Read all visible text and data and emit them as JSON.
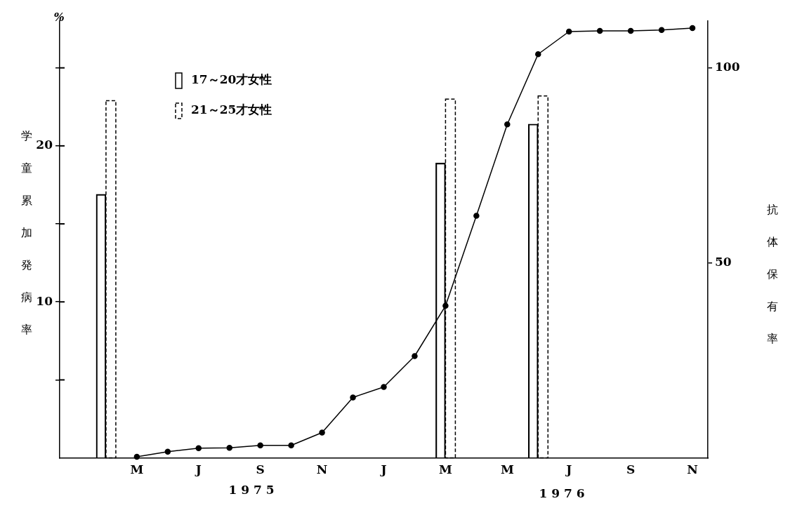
{
  "chart_data": {
    "type": "bar",
    "ylabel": "学童累加発病率",
    "y2label": "抗体保有率",
    "annotations": [
      "%",
      "1 9 7 5",
      "1 9 7 6"
    ],
    "categories": [
      null,
      null,
      "M",
      null,
      "J",
      null,
      "S",
      null,
      "N",
      null,
      "J",
      null,
      "M",
      null,
      "M",
      null,
      "J",
      null,
      "S",
      null,
      "N"
    ],
    "series": [
      {
        "name": "17～20才女性",
        "color": "#000000",
        "line_style": "solid",
        "values": [
          null,
          16.9,
          null,
          null,
          null,
          null,
          null,
          null,
          null,
          null,
          null,
          null,
          18.9,
          null,
          null,
          21.4,
          null,
          null,
          null,
          null,
          null
        ]
      },
      {
        "name": "21～25才女性",
        "color": "#000000",
        "line_style": "dashed",
        "values": [
          null,
          22.9,
          null,
          null,
          null,
          null,
          null,
          null,
          null,
          null,
          null,
          null,
          23.0,
          null,
          null,
          23.2,
          null,
          null,
          null,
          null,
          null
        ]
      },
      {
        "type": "line",
        "axis": "y2",
        "color": "#000000",
        "marker": "circle",
        "values": [
          null,
          null,
          0.3,
          1.6,
          2.5,
          2.6,
          3.2,
          3.2,
          6.5,
          15.5,
          18.2,
          26.1,
          39.0,
          62.1,
          85.5,
          103.5,
          109.3,
          109.5,
          109.5,
          109.7,
          110.2
        ]
      }
    ],
    "ylim": [
      0,
      28
    ],
    "yticks": [
      {
        "value": 5,
        "label": null
      },
      10,
      {
        "value": 15,
        "label": null
      },
      20,
      {
        "value": 25,
        "label": null
      }
    ],
    "y2lim": [
      0,
      112
    ],
    "y2ticks": [
      50,
      100
    ],
    "grid": false,
    "legend": "top left"
  }
}
